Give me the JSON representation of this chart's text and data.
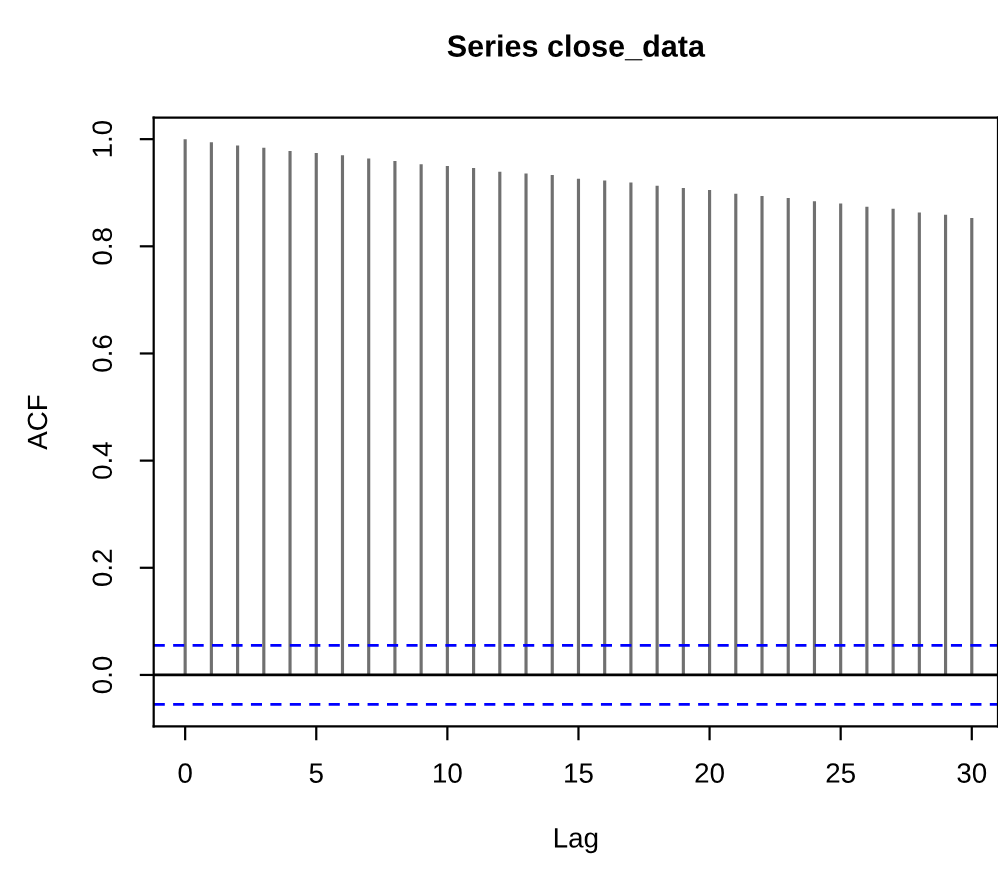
{
  "chart_data": {
    "type": "bar",
    "title": "Series close_data",
    "xlabel": "Lag",
    "ylabel": "ACF",
    "x": [
      0,
      1,
      2,
      3,
      4,
      5,
      6,
      7,
      8,
      9,
      10,
      11,
      12,
      13,
      14,
      15,
      16,
      17,
      18,
      19,
      20,
      21,
      22,
      23,
      24,
      25,
      26,
      27,
      28,
      29,
      30
    ],
    "values": [
      1.0,
      0.994,
      0.988,
      0.984,
      0.978,
      0.974,
      0.97,
      0.964,
      0.959,
      0.953,
      0.95,
      0.946,
      0.939,
      0.936,
      0.933,
      0.926,
      0.923,
      0.919,
      0.913,
      0.909,
      0.905,
      0.898,
      0.894,
      0.89,
      0.884,
      0.88,
      0.874,
      0.87,
      0.863,
      0.859,
      0.853
    ],
    "color": "#707070",
    "xlim": [
      -1.2,
      31.0
    ],
    "ylim": [
      -0.096,
      1.04
    ],
    "xticks": [
      0,
      5,
      10,
      15,
      20,
      25,
      30
    ],
    "yticks": [
      {
        "value": 0,
        "label": "0.0"
      },
      {
        "value": 0.2,
        "label": "0.2"
      },
      {
        "value": 0.4,
        "label": "0.4"
      },
      {
        "value": 0.6,
        "label": "0.6"
      },
      {
        "value": 0.8,
        "label": "0.8"
      },
      {
        "value": 1.0,
        "label": "1.0"
      }
    ],
    "ref_lines": [
      {
        "axis": "y",
        "value": 0,
        "label": null,
        "color": "#000000",
        "line_style": "solid"
      },
      {
        "axis": "y",
        "value": 0.055,
        "label": null,
        "color": "#0000ff",
        "line_style": "dashed"
      },
      {
        "axis": "y",
        "value": -0.055,
        "label": null,
        "color": "#0000ff",
        "line_style": "dashed"
      }
    ],
    "grid": false,
    "legend": false
  }
}
